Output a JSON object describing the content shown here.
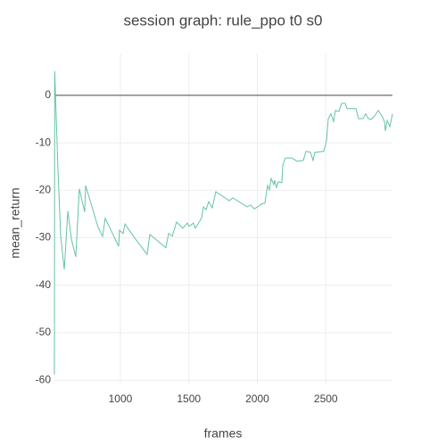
{
  "chart_data": {
    "type": "line",
    "title": "session graph: rule_ppo t0 s0",
    "x_label": "frames",
    "y_label": "mean_return",
    "x": [
      518,
      520,
      544,
      564,
      590,
      616,
      642,
      674,
      700,
      739,
      746,
      837,
      870,
      889,
      967,
      987,
      993,
      1020,
      1033,
      1111,
      1195,
      1215,
      1332,
      1352,
      1378,
      1410,
      1456,
      1489,
      1502,
      1534,
      1547,
      1567,
      1593,
      1606,
      1625,
      1645,
      1671,
      1697,
      1795,
      1821,
      1925,
      1951,
      1977,
      2003,
      2029,
      2055,
      2075,
      2088,
      2101,
      2120,
      2127,
      2140,
      2153,
      2179,
      2186,
      2205,
      2251,
      2290,
      2336,
      2355,
      2388,
      2407,
      2420,
      2485,
      2505,
      2518,
      2537,
      2557,
      2570,
      2596,
      2616,
      2642,
      2655,
      2720,
      2739,
      2772,
      2792,
      2811,
      2831,
      2857,
      2883,
      2909,
      2929,
      2935,
      2948,
      2968,
      2987
    ],
    "series": [
      {
        "name": "mean_return",
        "color": "#66c2a5",
        "values": [
          -58.8,
          5.1,
          -15.6,
          -29.7,
          -36.7,
          -24.4,
          -30.3,
          -34.0,
          -19.7,
          -24.6,
          -19.0,
          -27.8,
          -29.7,
          -25.9,
          -30.6,
          -31.8,
          -28.4,
          -29.1,
          -27.1,
          -30.3,
          -33.5,
          -29.3,
          -32.1,
          -29.1,
          -29.7,
          -26.7,
          -28.0,
          -26.9,
          -27.6,
          -26.9,
          -28.0,
          -27.1,
          -25.8,
          -23.5,
          -24.1,
          -22.4,
          -23.7,
          -20.3,
          -22.2,
          -21.6,
          -23.5,
          -23.1,
          -23.9,
          -23.5,
          -22.9,
          -22.7,
          -19.0,
          -19.9,
          -17.5,
          -18.8,
          -17.9,
          -19.4,
          -18.2,
          -18.4,
          -14.7,
          -13.2,
          -13.2,
          -13.9,
          -13.7,
          -11.8,
          -12.0,
          -13.7,
          -12.0,
          -11.8,
          -9.6,
          -4.9,
          -3.9,
          -5.5,
          -3.2,
          -3.4,
          -1.7,
          -1.7,
          -2.8,
          -2.8,
          -4.9,
          -4.9,
          -3.9,
          -4.9,
          -5.1,
          -4.3,
          -3.2,
          -4.3,
          -5.6,
          -7.5,
          -5.3,
          -6.6,
          -3.9
        ]
      }
    ],
    "xlim": [
      518,
      2987
    ],
    "ylim": [
      -60.7,
      8.8
    ],
    "xticks": [
      1000,
      1500,
      2000,
      2500
    ],
    "yticks": [
      -60,
      -50,
      -40,
      -30,
      -20,
      -10,
      0
    ],
    "grid": true,
    "zeroline": true
  }
}
